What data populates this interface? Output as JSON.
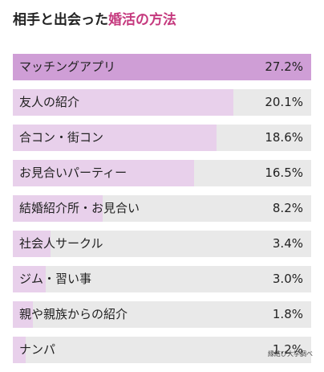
{
  "title_prefix": "相手と出会った",
  "title_highlight": "婚活の方法",
  "source": "縁結び大学調べ",
  "colors": {
    "accent": "#c5397e",
    "top_bar": "#cf9ed6",
    "bar": "#e8d0eb",
    "track": "#e9e9e9"
  },
  "chart_data": {
    "type": "bar",
    "orientation": "horizontal",
    "categories": [
      "マッチングアプリ",
      "友人の紹介",
      "合コン・街コン",
      "お見合いパーティー",
      "結婚紹介所・お見合い",
      "社会人サークル",
      "ジム・習い事",
      "親や親族からの紹介",
      "ナンパ"
    ],
    "values": [
      27.2,
      20.1,
      18.6,
      16.5,
      8.2,
      3.4,
      3.0,
      1.8,
      1.2
    ],
    "value_labels": [
      "27.2%",
      "20.1%",
      "18.6%",
      "16.5%",
      "8.2%",
      "3.4%",
      "3.0%",
      "1.8%",
      "1.2%"
    ],
    "xlim": [
      0,
      27.2
    ],
    "grid": false
  }
}
